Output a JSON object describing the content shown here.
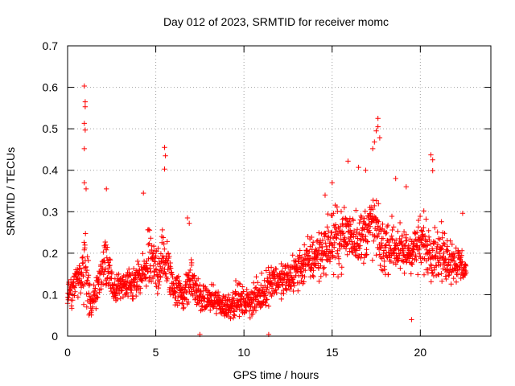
{
  "chart_data": {
    "type": "scatter",
    "title": "Day 012 of 2023, SRMTID for receiver momc",
    "xlabel": "GPS time / hours",
    "ylabel": "SRMTID / TECUs",
    "xlim": [
      0,
      24
    ],
    "ylim": [
      0,
      0.7
    ],
    "xticks": [
      0,
      5,
      10,
      15,
      20
    ],
    "yticks": [
      0,
      0.1,
      0.2,
      0.3,
      0.4,
      0.5,
      0.6,
      0.7
    ],
    "ytick_labels": [
      "0",
      "0.1",
      "0.2",
      "0.3",
      "0.4",
      "0.5",
      "0.6",
      "0.7"
    ],
    "grid": true,
    "marker": "+",
    "color": "#ff0000",
    "series": [
      {
        "name": "SRMTID",
        "x": [],
        "y": []
      }
    ],
    "envelope": {
      "x": [
        0,
        0.5,
        0.9,
        1.0,
        1.3,
        1.8,
        2.2,
        2.6,
        3.0,
        3.6,
        4.2,
        4.6,
        5.0,
        5.5,
        6.0,
        6.6,
        7.0,
        7.5,
        8.0,
        8.6,
        9.0,
        9.6,
        10.0,
        10.6,
        11.0,
        11.6,
        12.0,
        12.6,
        13.0,
        13.6,
        14.0,
        14.6,
        15.0,
        15.6,
        16.0,
        16.6,
        17.0,
        17.4,
        17.8,
        18.4,
        19.0,
        19.6,
        20.0,
        20.6,
        21.0,
        21.6,
        22.0,
        22.6
      ],
      "center": [
        0.1,
        0.13,
        0.16,
        0.2,
        0.08,
        0.13,
        0.18,
        0.11,
        0.12,
        0.12,
        0.14,
        0.18,
        0.16,
        0.19,
        0.12,
        0.1,
        0.14,
        0.09,
        0.09,
        0.08,
        0.07,
        0.09,
        0.08,
        0.09,
        0.1,
        0.14,
        0.13,
        0.14,
        0.16,
        0.18,
        0.19,
        0.21,
        0.23,
        0.24,
        0.25,
        0.23,
        0.26,
        0.27,
        0.21,
        0.22,
        0.2,
        0.21,
        0.22,
        0.21,
        0.2,
        0.19,
        0.18,
        0.16
      ],
      "spread": [
        0.05,
        0.05,
        0.08,
        0.13,
        0.04,
        0.05,
        0.08,
        0.04,
        0.04,
        0.05,
        0.07,
        0.09,
        0.08,
        0.1,
        0.05,
        0.05,
        0.07,
        0.04,
        0.04,
        0.04,
        0.04,
        0.05,
        0.04,
        0.05,
        0.05,
        0.06,
        0.05,
        0.06,
        0.06,
        0.07,
        0.07,
        0.08,
        0.09,
        0.09,
        0.09,
        0.08,
        0.09,
        0.1,
        0.08,
        0.08,
        0.07,
        0.07,
        0.08,
        0.08,
        0.08,
        0.07,
        0.06,
        0.05
      ]
    },
    "peaks": [
      {
        "x": 0.95,
        "y": 0.603
      },
      {
        "x": 1.0,
        "y": 0.565
      },
      {
        "x": 1.0,
        "y": 0.553
      },
      {
        "x": 0.95,
        "y": 0.513
      },
      {
        "x": 1.0,
        "y": 0.497
      },
      {
        "x": 0.95,
        "y": 0.452
      },
      {
        "x": 0.95,
        "y": 0.37
      },
      {
        "x": 1.05,
        "y": 0.355
      },
      {
        "x": 2.2,
        "y": 0.355
      },
      {
        "x": 5.5,
        "y": 0.455
      },
      {
        "x": 5.55,
        "y": 0.435
      },
      {
        "x": 5.5,
        "y": 0.403
      },
      {
        "x": 4.3,
        "y": 0.345
      },
      {
        "x": 17.3,
        "y": 0.452
      },
      {
        "x": 17.4,
        "y": 0.468
      },
      {
        "x": 17.6,
        "y": 0.525
      },
      {
        "x": 17.6,
        "y": 0.505
      },
      {
        "x": 17.7,
        "y": 0.478
      },
      {
        "x": 17.5,
        "y": 0.495
      },
      {
        "x": 16.5,
        "y": 0.407
      },
      {
        "x": 16.9,
        "y": 0.4
      },
      {
        "x": 15.9,
        "y": 0.422
      },
      {
        "x": 20.6,
        "y": 0.437
      },
      {
        "x": 20.7,
        "y": 0.425
      },
      {
        "x": 20.7,
        "y": 0.399
      },
      {
        "x": 20.2,
        "y": 0.302
      },
      {
        "x": 22.4,
        "y": 0.296
      },
      {
        "x": 6.8,
        "y": 0.285
      },
      {
        "x": 6.9,
        "y": 0.272
      },
      {
        "x": 7.5,
        "y": 0.004
      },
      {
        "x": 11.4,
        "y": 0.004
      },
      {
        "x": 19.5,
        "y": 0.04
      },
      {
        "x": 15.0,
        "y": 0.37
      },
      {
        "x": 14.6,
        "y": 0.34
      },
      {
        "x": 18.6,
        "y": 0.38
      },
      {
        "x": 19.2,
        "y": 0.36
      }
    ]
  }
}
